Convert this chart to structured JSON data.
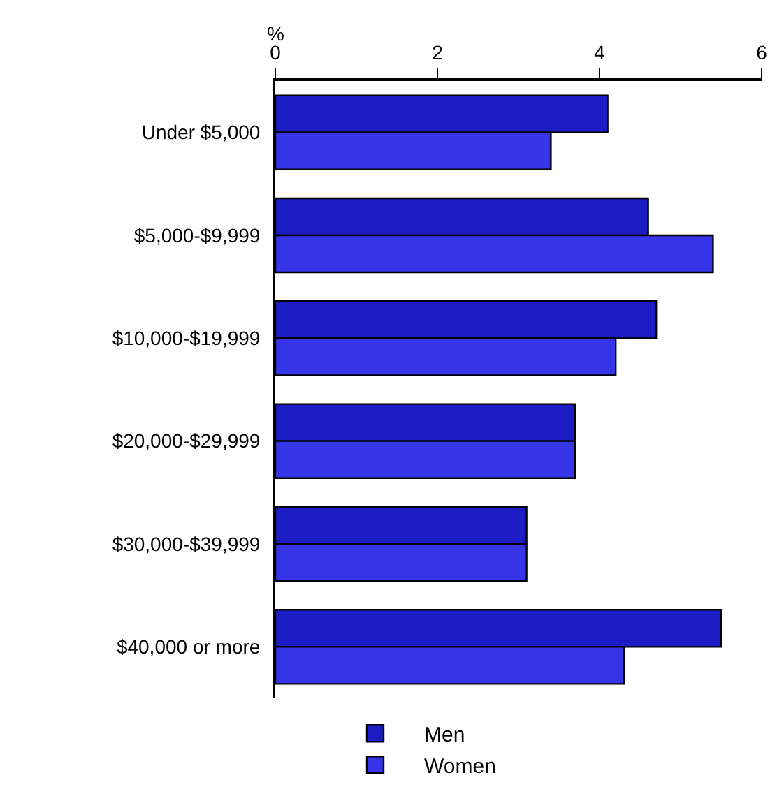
{
  "chart_data": {
    "type": "bar",
    "orientation": "horizontal",
    "xlabel": "%",
    "categories": [
      "Under $5,000",
      "$5,000-$9,999",
      "$10,000-$19,999",
      "$20,000-$29,999",
      "$30,000-$39,999",
      "$40,000 or more"
    ],
    "series": [
      {
        "name": "Men",
        "color": "#1c1cc4",
        "values": [
          4.1,
          4.6,
          4.7,
          3.7,
          3.1,
          5.5
        ]
      },
      {
        "name": "Women",
        "color": "#3636e8",
        "values": [
          3.4,
          5.4,
          4.2,
          3.7,
          3.1,
          4.3
        ]
      }
    ],
    "xlim": [
      0,
      6
    ],
    "xticks": [
      0,
      2,
      4,
      6
    ],
    "grid": false,
    "legend": "bottom"
  }
}
